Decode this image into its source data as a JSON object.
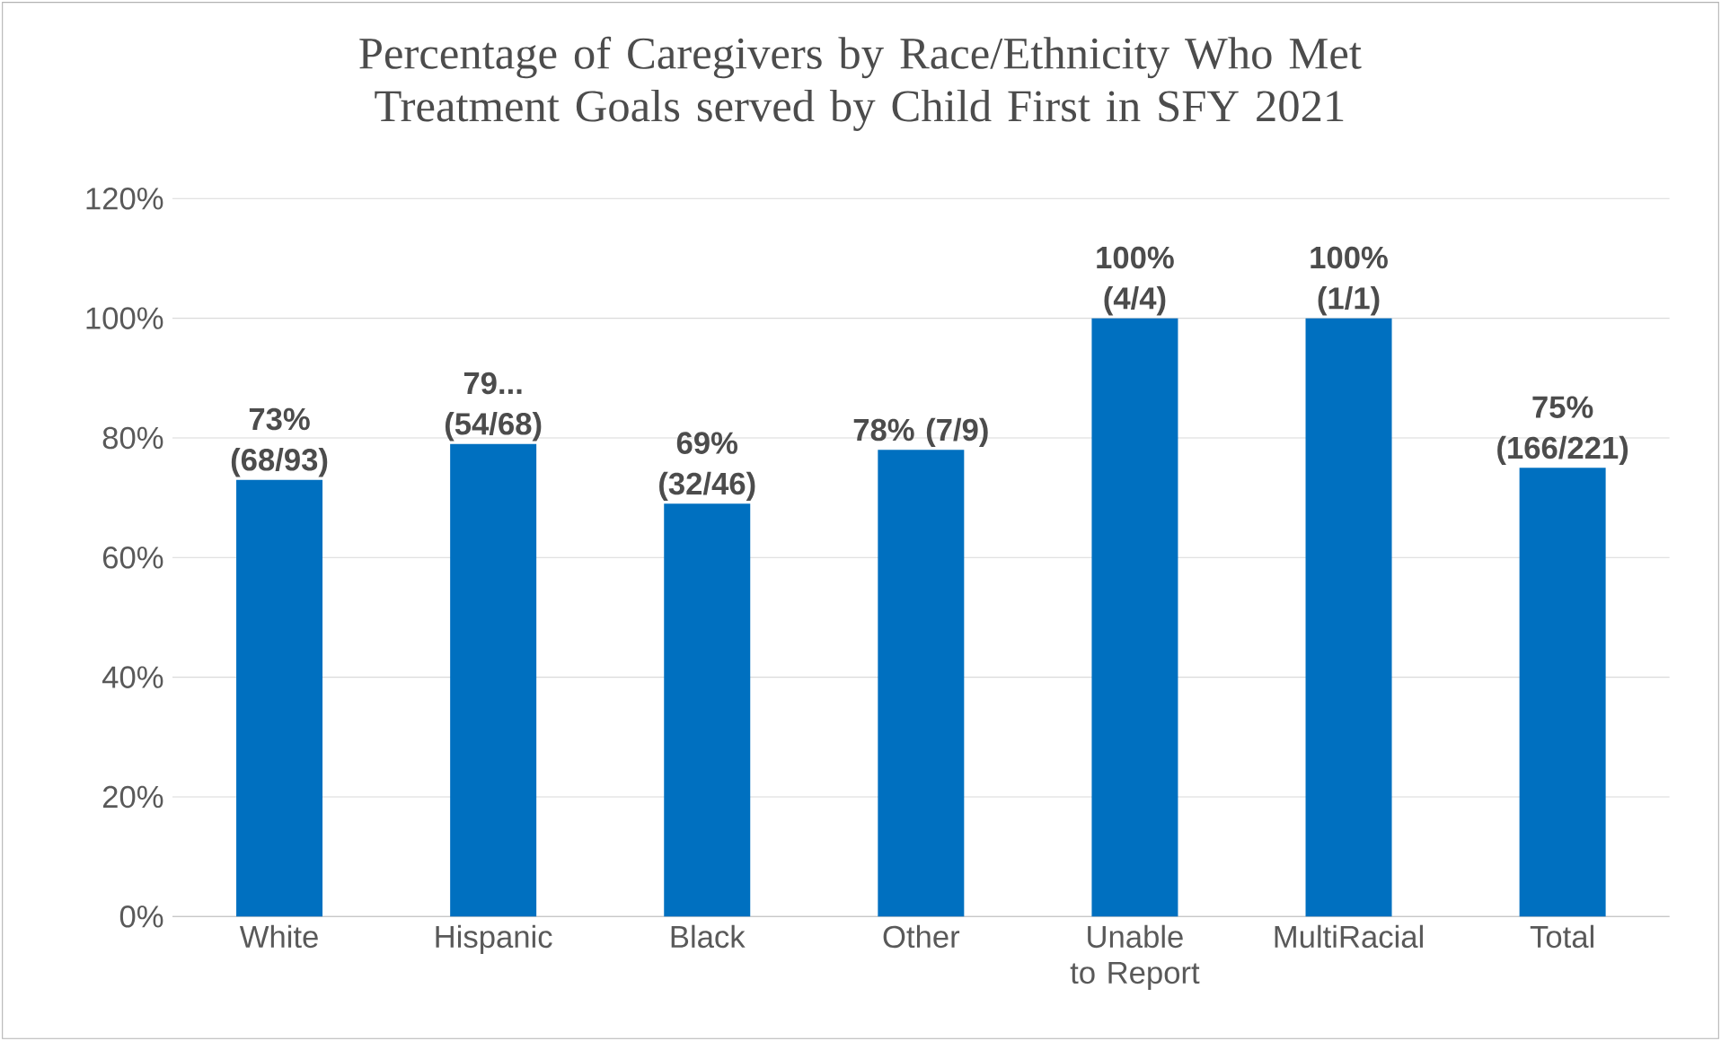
{
  "chart_data": {
    "type": "bar",
    "title": "Percentage of Caregivers by Race/Ethnicity Who  Met Treatment Goals served by Child First in SFY 2021",
    "categories": [
      "White",
      "Hispanic",
      "Black",
      "Other",
      "Unable to Report",
      "MultiRacial",
      "Total"
    ],
    "values": [
      73,
      79,
      69,
      78,
      100,
      100,
      75
    ],
    "value_labels": [
      "73% (68/93)",
      "79... (54/68)",
      "69% (32/46)",
      "78% (7/9)",
      "100% (4/4)",
      "100% (1/1)",
      "75% (166/221)"
    ],
    "color": "#0070c0",
    "ylim": [
      0,
      120
    ],
    "yticks": [
      {
        "value": 0,
        "label": "0%"
      },
      {
        "value": 20,
        "label": "20%"
      },
      {
        "value": 40,
        "label": "40%"
      },
      {
        "value": 60,
        "label": "60%"
      },
      {
        "value": 80,
        "label": "80%"
      },
      {
        "value": 100,
        "label": "100%"
      },
      {
        "value": 120,
        "label": "120%"
      }
    ],
    "grid": "y"
  }
}
